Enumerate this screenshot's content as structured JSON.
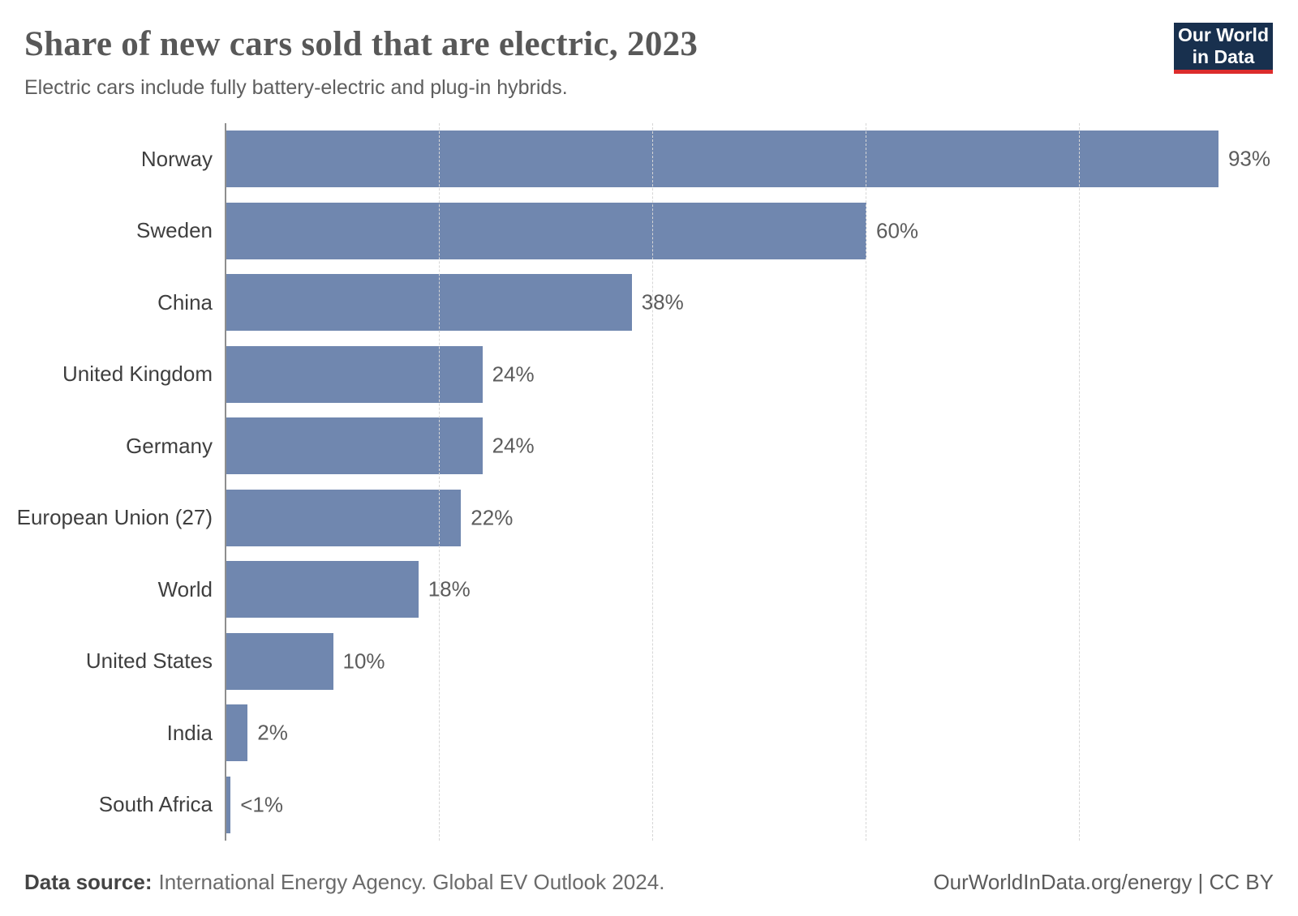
{
  "header": {
    "logo_line1": "Our World",
    "logo_line2": "in Data"
  },
  "chart_data": {
    "type": "bar",
    "orientation": "horizontal",
    "title": "Share of new cars sold that are electric, 2023",
    "subtitle": "Electric cars include fully battery-electric and plug-in hybrids.",
    "categories": [
      "Norway",
      "Sweden",
      "China",
      "United Kingdom",
      "Germany",
      "European Union (27)",
      "World",
      "United States",
      "India",
      "South Africa"
    ],
    "values": [
      93,
      60,
      38,
      24,
      24,
      22,
      18,
      10,
      2,
      0.4
    ],
    "value_labels": [
      "93%",
      "60%",
      "38%",
      "24%",
      "24%",
      "22%",
      "18%",
      "10%",
      "2%",
      "<1%"
    ],
    "xlabel": "",
    "ylabel": "",
    "xlim": [
      0,
      100
    ],
    "gridlines_pct": [
      20,
      40,
      60,
      80
    ],
    "grid": "vertical-dashed",
    "legend": "none",
    "unit": "%"
  },
  "colors": {
    "bar": "#7087af",
    "axis": "#8e8e8e",
    "gridline": "#d6d6d6",
    "logo_bg": "#18304e",
    "logo_red": "#dc2c2c"
  },
  "footer": {
    "source_label": "Data source:",
    "source_text": "International Energy Agency. Global EV Outlook 2024.",
    "right_text": "OurWorldInData.org/energy | CC BY"
  }
}
